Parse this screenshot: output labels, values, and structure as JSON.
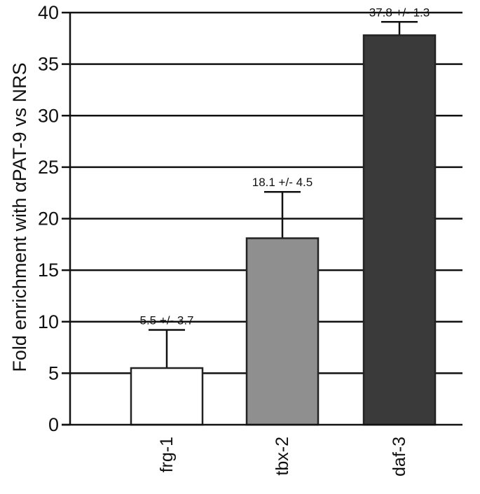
{
  "chart_data": {
    "type": "bar",
    "title": "",
    "xlabel": "",
    "ylabel": "Fold enrichment with αPAT-9 vs NRS",
    "ylim": [
      0,
      40
    ],
    "yticks": [
      0,
      5,
      10,
      15,
      20,
      25,
      30,
      35,
      40
    ],
    "categories": [
      "frg-1",
      "tbx-2",
      "daf-3"
    ],
    "values": [
      5.5,
      18.1,
      37.8
    ],
    "errors": [
      3.7,
      4.5,
      1.3
    ],
    "data_labels": [
      "5.5 +/- 3.7",
      "18.1 +/- 4.5",
      "37.8 +/- 1.3"
    ],
    "bar_colors": [
      "#ffffff",
      "#8f8f8f",
      "#3a3a3a"
    ],
    "grid": true,
    "legend": "none"
  }
}
